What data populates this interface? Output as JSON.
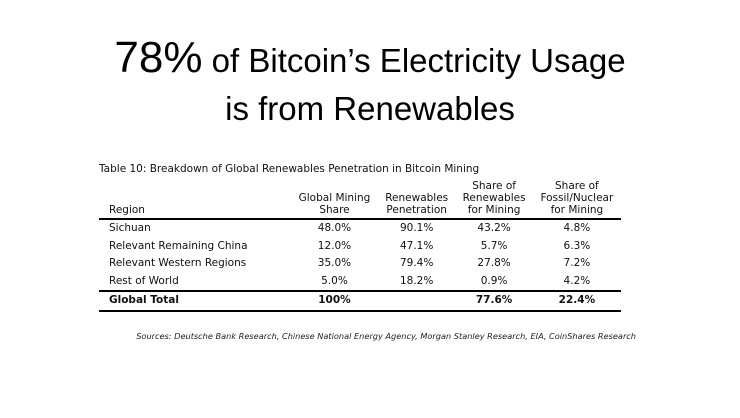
{
  "title": {
    "highlight": "78%",
    "line1_rest": " of Bitcoin’s Electricity Usage",
    "line2": "is from Renewables"
  },
  "table": {
    "caption": "Table 10: Breakdown of Global Renewables Penetration in Bitcoin Mining",
    "headers": [
      [
        "Region"
      ],
      [
        "Global Mining",
        "Share"
      ],
      [
        "Renewables",
        "Penetration"
      ],
      [
        "Share of",
        "Renewables",
        "for Mining"
      ],
      [
        "Share of",
        "Fossil/Nuclear",
        "for Mining"
      ]
    ],
    "rows": [
      [
        "Sichuan",
        "48.0%",
        "90.1%",
        "43.2%",
        "4.8%"
      ],
      [
        "Relevant Remaining China",
        "12.0%",
        "47.1%",
        "5.7%",
        "6.3%"
      ],
      [
        "Relevant Western Regions",
        "35.0%",
        "79.4%",
        "27.8%",
        "7.2%"
      ],
      [
        "Rest of World",
        "5.0%",
        "18.2%",
        "0.9%",
        "4.2%"
      ]
    ],
    "total": [
      "Global Total",
      "100%",
      "",
      "77.6%",
      "22.4%"
    ]
  },
  "sources": "Sources: Deutsche Bank Research, Chinese National Energy Agency, Morgan Stanley Research, EIA, CoinShares Research"
}
